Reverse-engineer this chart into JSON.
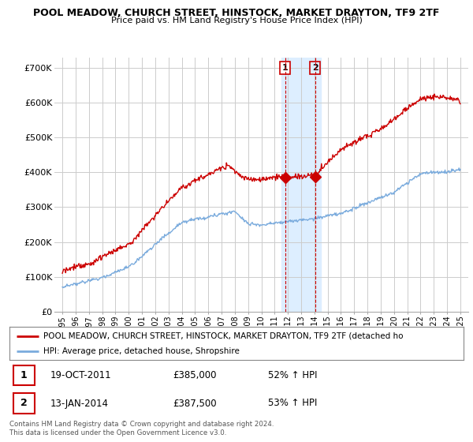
{
  "title": "POOL MEADOW, CHURCH STREET, HINSTOCK, MARKET DRAYTON, TF9 2TF",
  "subtitle": "Price paid vs. HM Land Registry's House Price Index (HPI)",
  "ylabel_ticks": [
    "£0",
    "£100K",
    "£200K",
    "£300K",
    "£400K",
    "£500K",
    "£600K",
    "£700K"
  ],
  "ytick_vals": [
    0,
    100000,
    200000,
    300000,
    400000,
    500000,
    600000,
    700000
  ],
  "ylim": [
    0,
    730000
  ],
  "legend_line1": "POOL MEADOW, CHURCH STREET, HINSTOCK, MARKET DRAYTON, TF9 2TF (detached ho",
  "legend_line2": "HPI: Average price, detached house, Shropshire",
  "sale1_label": "1",
  "sale1_date": "19-OCT-2011",
  "sale1_price": "£385,000",
  "sale1_hpi": "52% ↑ HPI",
  "sale2_label": "2",
  "sale2_date": "13-JAN-2014",
  "sale2_price": "£387,500",
  "sale2_hpi": "53% ↑ HPI",
  "footnote": "Contains HM Land Registry data © Crown copyright and database right 2024.\nThis data is licensed under the Open Government Licence v3.0.",
  "hpi_color": "#7aabdd",
  "price_color": "#cc0000",
  "marker_color": "#cc0000",
  "background_color": "#ffffff",
  "grid_color": "#cccccc",
  "sale1_x": 2011.8,
  "sale2_x": 2014.05,
  "sale1_y": 385000,
  "sale2_y": 387500,
  "highlight_x1": 2011.5,
  "highlight_x2": 2014.5,
  "highlight_color": "#ddeeff",
  "xlim_left": 1994.4,
  "xlim_right": 2025.6
}
